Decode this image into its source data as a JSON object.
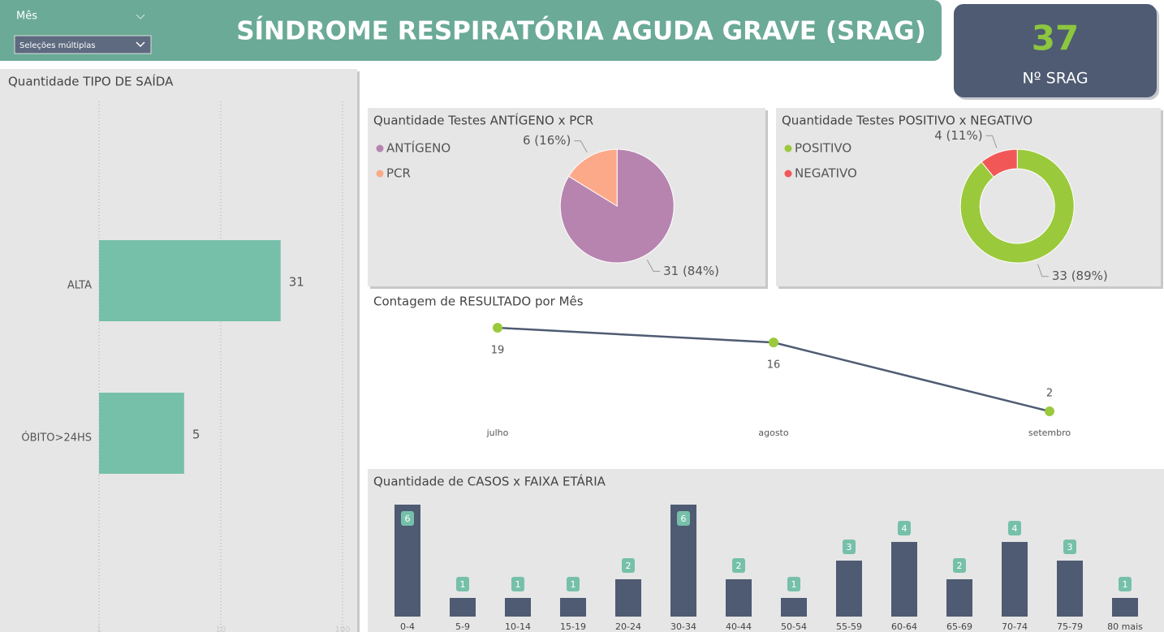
{
  "slicer": {
    "label": "Mês",
    "value": "Seleções múltiplas"
  },
  "header": {
    "title": "SÍNDROME RESPIRATÓRIA AGUDA GRAVE (SRAG)"
  },
  "kpi": {
    "value": 37,
    "label": "Nº SRAG"
  },
  "chart_data": [
    {
      "type": "bar",
      "orientation": "horizontal",
      "title": "Quantidade TIPO DE SAÍDA",
      "categories": [
        "ALTA",
        "ÓBITO>24HS"
      ],
      "values": [
        31,
        5
      ],
      "color": "#76c0aa",
      "xlim": [
        1,
        100
      ],
      "xticks": [
        1,
        10,
        100
      ],
      "log_scale": true,
      "grid": true
    },
    {
      "type": "pie",
      "title": "Quantidade Testes ANTÍGENO x PCR",
      "categories": [
        "ANTÍGENO",
        "PCR"
      ],
      "values": [
        31,
        6
      ],
      "value_labels": [
        "31 (84%)",
        "6 (16%)"
      ],
      "colors": [
        "#b784b0",
        "#fca98a"
      ]
    },
    {
      "type": "donut",
      "title": "Quantidade Testes POSITIVO x NEGATIVO",
      "categories": [
        "POSITIVO",
        "NEGATIVO"
      ],
      "values": [
        33,
        4
      ],
      "value_labels": [
        "33 (89%)",
        "4 (11%)"
      ],
      "colors": [
        "#9bc93c",
        "#f25757"
      ]
    },
    {
      "type": "line",
      "title": "Contagem de RESULTADO por Mês",
      "categories": [
        "julho",
        "agosto",
        "setembro"
      ],
      "values": [
        19,
        16,
        2
      ],
      "color": "#4e5b72",
      "marker_color": "#9bc93c"
    },
    {
      "type": "bar",
      "title": "Quantidade de CASOS x FAIXA ETÁRIA",
      "categories": [
        "0-4",
        "5-9",
        "10-14",
        "15-19",
        "20-24",
        "30-34",
        "40-44",
        "50-54",
        "55-59",
        "60-64",
        "65-69",
        "70-74",
        "75-79",
        "80 mais"
      ],
      "values": [
        6,
        1,
        1,
        1,
        2,
        6,
        2,
        1,
        3,
        4,
        2,
        4,
        3,
        1
      ],
      "color": "#4e5b72",
      "label_color": "#76c0aa"
    }
  ]
}
